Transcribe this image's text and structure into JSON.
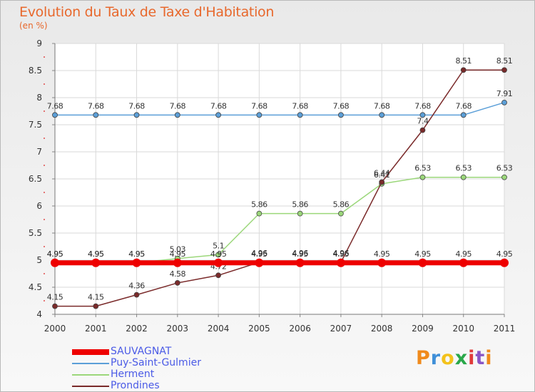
{
  "title": "Evolution du Taux de Taxe d'Habitation",
  "subtitle": "(en %)",
  "brand": {
    "text": "Proxiti",
    "colors": [
      "#f08a1c",
      "#3f8fd8",
      "#f3c21b",
      "#2aa84a",
      "#e03a3a",
      "#8a56c6",
      "#f08a1c"
    ]
  },
  "chart_data": {
    "type": "line",
    "x": [
      "2000",
      "2001",
      "2002",
      "2003",
      "2004",
      "2005",
      "2006",
      "2007",
      "2008",
      "2009",
      "2010",
      "2011"
    ],
    "ylim": [
      4,
      9
    ],
    "yticks": [
      "4",
      "4.5",
      "5",
      "5.5",
      "6",
      "6.5",
      "7",
      "7.5",
      "8",
      "8.5",
      "9"
    ],
    "grid": true,
    "legend_position": "bottom-left",
    "series": [
      {
        "name": "SAUVAGNAT",
        "color": "#ee0000",
        "width": 7,
        "radius": 6,
        "values": [
          4.95,
          4.95,
          4.95,
          4.95,
          4.95,
          4.95,
          4.95,
          4.95,
          4.95,
          4.95,
          4.95,
          4.95
        ],
        "labels": [
          "4.95",
          "4.95",
          "4.95",
          "4.95",
          "4.95",
          "4.95",
          "4.95",
          "4.95",
          "4.95",
          "4.95",
          "4.95",
          "4.95"
        ]
      },
      {
        "name": "Puy-Saint-Gulmier",
        "color": "#5b9fd8",
        "width": 1.5,
        "radius": 3.5,
        "values": [
          7.68,
          7.68,
          7.68,
          7.68,
          7.68,
          7.68,
          7.68,
          7.68,
          7.68,
          7.68,
          7.68,
          7.91
        ],
        "labels": [
          "7.68",
          "7.68",
          "7.68",
          "7.68",
          "7.68",
          "7.68",
          "7.68",
          "7.68",
          "7.68",
          "7.68",
          "7.68",
          "7.91"
        ]
      },
      {
        "name": "Herment",
        "color": "#9bd77a",
        "width": 1.5,
        "radius": 3.5,
        "values": [
          4.95,
          4.95,
          4.95,
          5.03,
          5.1,
          5.86,
          5.86,
          5.86,
          6.41,
          6.53,
          6.53,
          6.53
        ],
        "labels": [
          "4.95",
          "4.95",
          "4.95",
          "5.03",
          "5.1",
          "5.86",
          "5.86",
          "5.86",
          "6.41",
          "6.53",
          "6.53",
          "6.53"
        ]
      },
      {
        "name": "Prondines",
        "color": "#7a2a2a",
        "width": 1.5,
        "radius": 3.5,
        "values": [
          4.15,
          4.15,
          4.36,
          4.58,
          4.72,
          4.96,
          4.96,
          4.96,
          6.44,
          7.4,
          8.51,
          8.51
        ],
        "labels": [
          "4.15",
          "4.15",
          "4.36",
          "4.58",
          "4.72",
          "4.96",
          "4.96",
          "4.96",
          "6.44",
          "7.4",
          "8.51",
          "8.51"
        ]
      }
    ]
  }
}
